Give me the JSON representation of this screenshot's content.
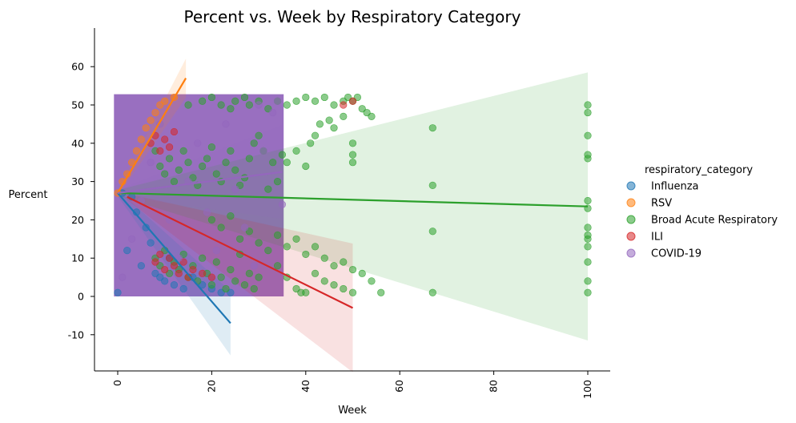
{
  "chart_data": {
    "type": "scatter",
    "title": "Percent vs. Week by Respiratory Category",
    "xlabel": "Week",
    "ylabel": "Percent",
    "xlim": [
      -5,
      105
    ],
    "ylim": [
      -19,
      70
    ],
    "x_ticks": [
      0,
      20,
      40,
      60,
      80,
      100
    ],
    "y_ticks": [
      -10,
      0,
      10,
      20,
      30,
      40,
      50,
      60
    ],
    "grid": false,
    "legend": {
      "title": "respiratory_category",
      "placement": "right"
    },
    "series": [
      {
        "name": "Influenza",
        "color": "#1f77b4",
        "points": [
          [
            0,
            1
          ],
          [
            1,
            27
          ],
          [
            2,
            12
          ],
          [
            3,
            26
          ],
          [
            4,
            22
          ],
          [
            5,
            8
          ],
          [
            6,
            18
          ],
          [
            7,
            14
          ],
          [
            8,
            6
          ],
          [
            9,
            5
          ],
          [
            10,
            4
          ],
          [
            11,
            10
          ],
          [
            12,
            3
          ],
          [
            14,
            2
          ],
          [
            16,
            5
          ],
          [
            18,
            3
          ],
          [
            20,
            2
          ],
          [
            22,
            1
          ],
          [
            24,
            1
          ]
        ],
        "regression": {
          "x": [
            0,
            24
          ],
          "y": [
            27,
            -7
          ]
        }
      },
      {
        "name": "RSV",
        "color": "#ff7f0e",
        "points": [
          [
            0,
            27
          ],
          [
            1,
            30
          ],
          [
            2,
            32
          ],
          [
            3,
            35
          ],
          [
            4,
            38
          ],
          [
            5,
            41
          ],
          [
            6,
            44
          ],
          [
            7,
            46
          ],
          [
            8,
            48
          ],
          [
            9,
            50
          ],
          [
            10,
            51
          ],
          [
            12,
            52
          ]
        ],
        "regression": {
          "x": [
            0,
            14.5
          ],
          "y": [
            27,
            57
          ]
        }
      },
      {
        "name": "Broad Acute Respiratory",
        "color": "#2ca02c",
        "points": [
          [
            15,
            50
          ],
          [
            18,
            51
          ],
          [
            20,
            52
          ],
          [
            22,
            50
          ],
          [
            24,
            49
          ],
          [
            25,
            51
          ],
          [
            27,
            52
          ],
          [
            28,
            50
          ],
          [
            30,
            51
          ],
          [
            32,
            49
          ],
          [
            34,
            51
          ],
          [
            36,
            50
          ],
          [
            38,
            51
          ],
          [
            40,
            52
          ],
          [
            42,
            51
          ],
          [
            44,
            52
          ],
          [
            46,
            50
          ],
          [
            48,
            51
          ],
          [
            49,
            52
          ],
          [
            50,
            51
          ],
          [
            51,
            52
          ],
          [
            52,
            49
          ],
          [
            53,
            48
          ],
          [
            54,
            47
          ],
          [
            48,
            47
          ],
          [
            46,
            44
          ],
          [
            45,
            46
          ],
          [
            43,
            45
          ],
          [
            42,
            42
          ],
          [
            41,
            40
          ],
          [
            38,
            38
          ],
          [
            36,
            35
          ],
          [
            40,
            34
          ],
          [
            34,
            30
          ],
          [
            32,
            28
          ],
          [
            8,
            38
          ],
          [
            9,
            34
          ],
          [
            10,
            32
          ],
          [
            11,
            36
          ],
          [
            12,
            30
          ],
          [
            13,
            33
          ],
          [
            14,
            38
          ],
          [
            15,
            35
          ],
          [
            16,
            31
          ],
          [
            17,
            29
          ],
          [
            18,
            34
          ],
          [
            19,
            36
          ],
          [
            20,
            39
          ],
          [
            21,
            32
          ],
          [
            22,
            30
          ],
          [
            23,
            35
          ],
          [
            24,
            38
          ],
          [
            25,
            33
          ],
          [
            26,
            29
          ],
          [
            27,
            31
          ],
          [
            28,
            36
          ],
          [
            29,
            40
          ],
          [
            30,
            42
          ],
          [
            31,
            38
          ],
          [
            33,
            35
          ],
          [
            35,
            37
          ],
          [
            20,
            20
          ],
          [
            22,
            18
          ],
          [
            24,
            21
          ],
          [
            26,
            15
          ],
          [
            28,
            17
          ],
          [
            30,
            14
          ],
          [
            32,
            12
          ],
          [
            34,
            16
          ],
          [
            36,
            13
          ],
          [
            38,
            15
          ],
          [
            40,
            11
          ],
          [
            42,
            13
          ],
          [
            44,
            10
          ],
          [
            46,
            8
          ],
          [
            48,
            9
          ],
          [
            50,
            7
          ],
          [
            52,
            6
          ],
          [
            54,
            4
          ],
          [
            56,
            1
          ],
          [
            50,
            1
          ],
          [
            48,
            2
          ],
          [
            46,
            3
          ],
          [
            44,
            4
          ],
          [
            42,
            6
          ],
          [
            40,
            1
          ],
          [
            39,
            1
          ],
          [
            38,
            2
          ],
          [
            36,
            5
          ],
          [
            34,
            8
          ],
          [
            8,
            10
          ],
          [
            9,
            8
          ],
          [
            10,
            12
          ],
          [
            11,
            6
          ],
          [
            12,
            9
          ],
          [
            13,
            7
          ],
          [
            14,
            11
          ],
          [
            15,
            5
          ],
          [
            16,
            8
          ],
          [
            17,
            4
          ],
          [
            18,
            10
          ],
          [
            19,
            6
          ],
          [
            20,
            3
          ],
          [
            21,
            9
          ],
          [
            22,
            5
          ],
          [
            23,
            2
          ],
          [
            24,
            7
          ],
          [
            25,
            4
          ],
          [
            26,
            11
          ],
          [
            27,
            3
          ],
          [
            28,
            6
          ],
          [
            29,
            2
          ],
          [
            30,
            5
          ],
          [
            50,
            40
          ],
          [
            50,
            37
          ],
          [
            50,
            35
          ],
          [
            67,
            44
          ],
          [
            67,
            29
          ],
          [
            67,
            17
          ],
          [
            67,
            1
          ],
          [
            100,
            50
          ],
          [
            100,
            48
          ],
          [
            100,
            42
          ],
          [
            100,
            37
          ],
          [
            100,
            36
          ],
          [
            100,
            25
          ],
          [
            100,
            23
          ],
          [
            100,
            18
          ],
          [
            100,
            16
          ],
          [
            100,
            15
          ],
          [
            100,
            13
          ],
          [
            100,
            9
          ],
          [
            100,
            4
          ],
          [
            100,
            1
          ]
        ],
        "regression": {
          "x": [
            0,
            100
          ],
          "y": [
            27,
            23.5
          ]
        }
      },
      {
        "name": "ILI",
        "color": "#d62728",
        "points": [
          [
            7,
            40
          ],
          [
            8,
            42
          ],
          [
            9,
            38
          ],
          [
            10,
            41
          ],
          [
            11,
            39
          ],
          [
            12,
            43
          ],
          [
            8,
            9
          ],
          [
            9,
            11
          ],
          [
            10,
            7
          ],
          [
            11,
            10
          ],
          [
            12,
            8
          ],
          [
            13,
            6
          ],
          [
            14,
            9
          ],
          [
            15,
            5
          ],
          [
            16,
            7
          ],
          [
            18,
            6
          ],
          [
            20,
            5
          ],
          [
            50,
            51
          ],
          [
            48,
            50
          ]
        ],
        "regression": {
          "x": [
            2,
            50
          ],
          "y": [
            26,
            -3
          ]
        }
      },
      {
        "name": "COVID-19",
        "color": "#9467bd",
        "points": [
          [
            1,
            5
          ],
          [
            3,
            15
          ],
          [
            5,
            25
          ],
          [
            7,
            35
          ],
          [
            9,
            45
          ],
          [
            11,
            20
          ],
          [
            13,
            10
          ],
          [
            15,
            30
          ],
          [
            17,
            40
          ],
          [
            19,
            22
          ],
          [
            21,
            12
          ],
          [
            23,
            45
          ],
          [
            25,
            28
          ],
          [
            27,
            18
          ],
          [
            29,
            8
          ],
          [
            31,
            38
          ],
          [
            33,
            48
          ],
          [
            35,
            24
          ],
          [
            30,
            50
          ],
          [
            34,
            51
          ]
        ],
        "regression": {
          "x": [
            0,
            35
          ],
          "y": [
            27,
            32.5
          ]
        }
      }
    ]
  }
}
